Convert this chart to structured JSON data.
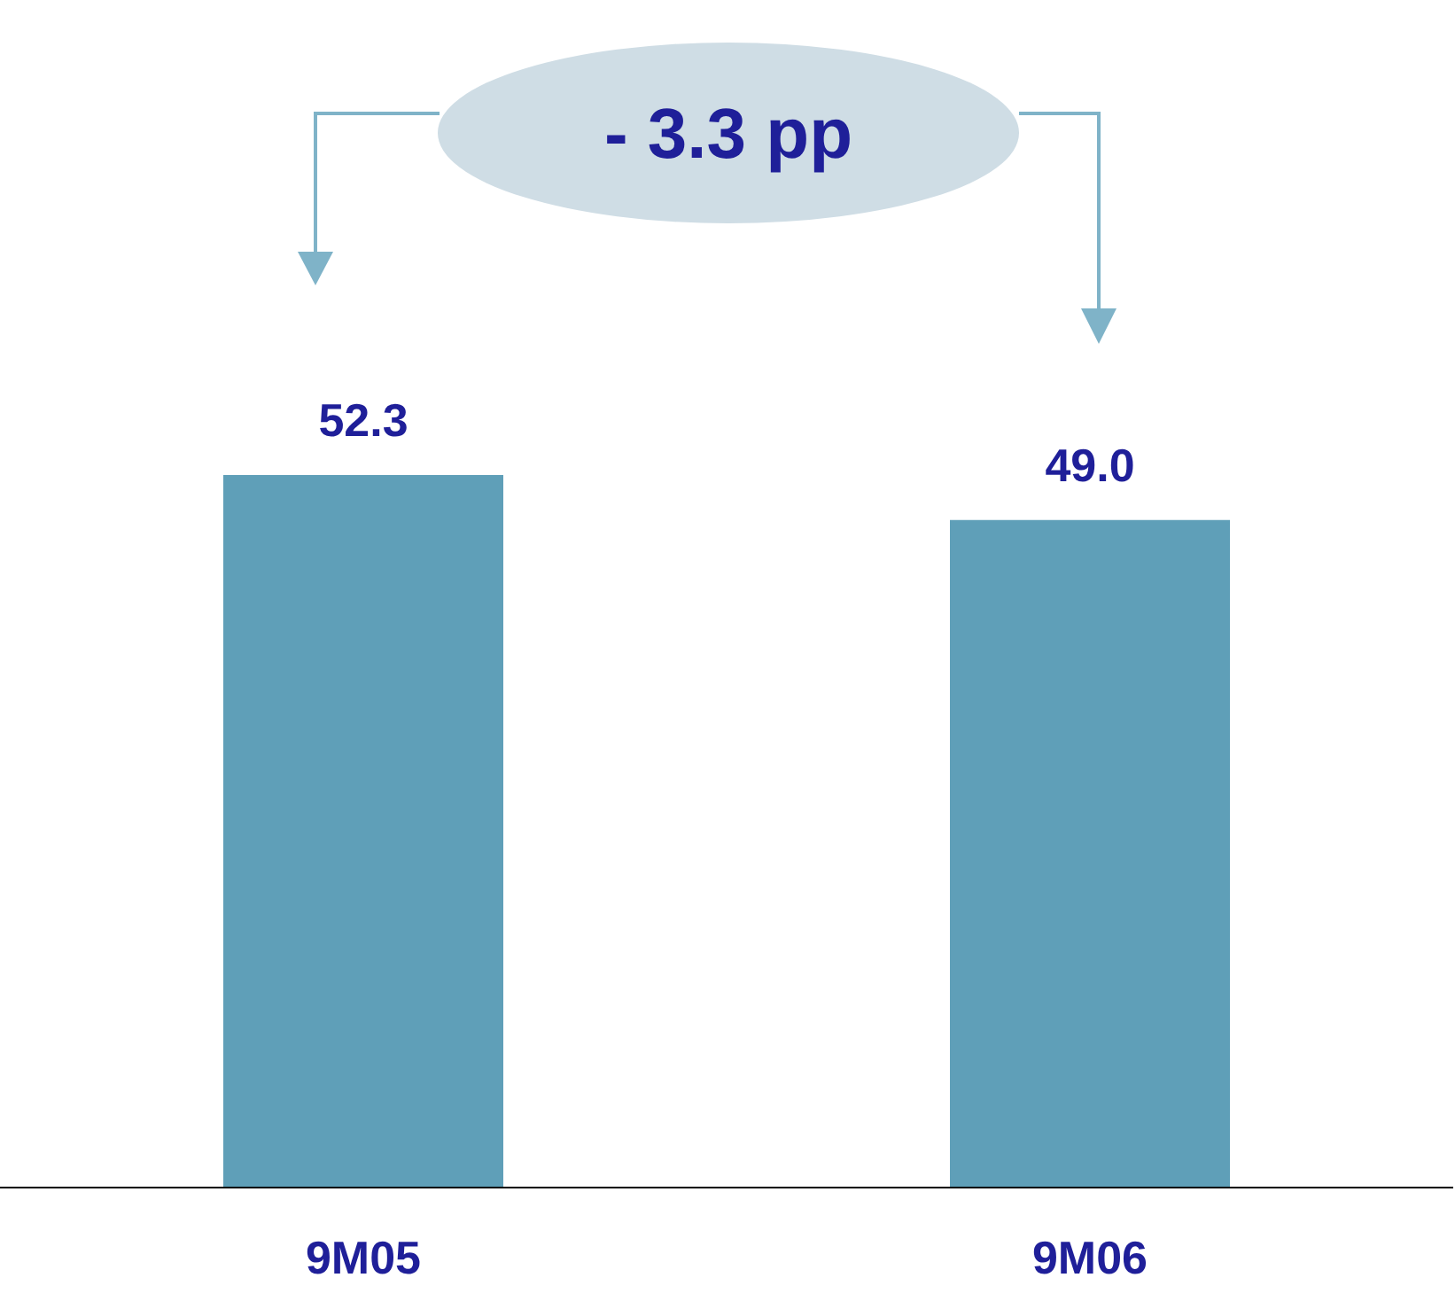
{
  "chart_data": {
    "type": "bar",
    "categories": [
      "9M05",
      "9M06"
    ],
    "values": [
      52.3,
      49.0
    ],
    "value_labels": [
      "52.3",
      "49.0"
    ],
    "color": "#5f9fb8",
    "annotations": [
      "- 3.3 pp"
    ]
  }
}
